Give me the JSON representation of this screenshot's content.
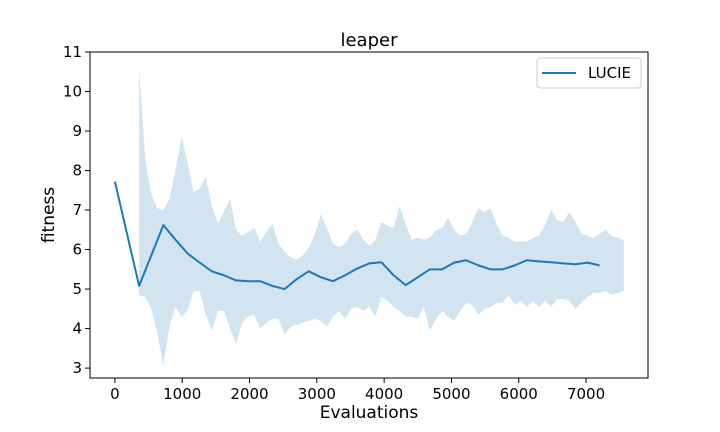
{
  "chart_data": {
    "type": "line",
    "title": "leaper",
    "xlabel": "Evaluations",
    "ylabel": "fitness",
    "xlim": [
      -370,
      7920
    ],
    "ylim": [
      2.75,
      11.0
    ],
    "xticks": [
      0,
      1000,
      2000,
      3000,
      4000,
      5000,
      6000,
      7000
    ],
    "yticks": [
      3,
      4,
      5,
      6,
      7,
      8,
      9,
      10,
      11
    ],
    "grid": false,
    "legend": {
      "position": "top-right"
    },
    "series": [
      {
        "name": "LUCIE",
        "color": "#1f77b4",
        "x": [
          0,
          360,
          720,
          900,
          1080,
          1260,
          1440,
          1620,
          1800,
          1980,
          2160,
          2340,
          2520,
          2700,
          2880,
          3060,
          3240,
          3420,
          3600,
          3780,
          3960,
          4140,
          4320,
          4500,
          4680,
          4860,
          5040,
          5220,
          5400,
          5580,
          5760,
          5940,
          6120,
          6300,
          6480,
          6660,
          6840,
          7020,
          7200
        ],
        "y": [
          7.72,
          5.08,
          6.62,
          6.25,
          5.9,
          5.67,
          5.45,
          5.35,
          5.22,
          5.2,
          5.2,
          5.08,
          5.0,
          5.25,
          5.45,
          5.3,
          5.2,
          5.35,
          5.52,
          5.65,
          5.68,
          5.35,
          5.1,
          5.3,
          5.5,
          5.5,
          5.67,
          5.73,
          5.6,
          5.5,
          5.5,
          5.6,
          5.73,
          5.7,
          5.68,
          5.65,
          5.63,
          5.67,
          5.6
        ]
      }
    ],
    "band": {
      "series": "LUCIE",
      "color": "#1f77b4",
      "opacity": 0.2,
      "x": [
        360,
        450,
        540,
        630,
        720,
        810,
        900,
        990,
        1080,
        1170,
        1260,
        1350,
        1440,
        1530,
        1620,
        1710,
        1800,
        1890,
        1980,
        2070,
        2160,
        2250,
        2340,
        2430,
        2520,
        2610,
        2700,
        2790,
        2880,
        2970,
        3060,
        3150,
        3240,
        3330,
        3420,
        3510,
        3600,
        3690,
        3780,
        3870,
        3960,
        4050,
        4140,
        4230,
        4320,
        4410,
        4500,
        4590,
        4680,
        4770,
        4860,
        4950,
        5040,
        5130,
        5220,
        5310,
        5400,
        5490,
        5580,
        5670,
        5760,
        5850,
        5940,
        6030,
        6120,
        6210,
        6300,
        6390,
        6480,
        6570,
        6660,
        6750,
        6840,
        6930,
        7020,
        7110,
        7200,
        7290,
        7380,
        7470,
        7560
      ],
      "upper": [
        10.6,
        8.3,
        7.4,
        7.05,
        7.0,
        7.3,
        8.0,
        8.85,
        8.2,
        7.45,
        7.55,
        7.85,
        7.1,
        6.65,
        6.95,
        7.3,
        6.5,
        6.35,
        6.45,
        6.55,
        6.2,
        6.45,
        6.65,
        6.15,
        5.95,
        5.8,
        5.75,
        5.85,
        6.05,
        6.4,
        6.9,
        6.55,
        6.15,
        6.05,
        6.15,
        6.4,
        6.5,
        6.25,
        6.1,
        6.25,
        6.7,
        6.6,
        6.55,
        7.1,
        6.65,
        6.25,
        6.3,
        6.25,
        6.3,
        6.5,
        6.55,
        6.8,
        6.5,
        6.35,
        6.4,
        6.7,
        7.05,
        6.95,
        7.05,
        6.65,
        6.35,
        6.3,
        6.2,
        6.2,
        6.2,
        6.3,
        6.35,
        6.6,
        7.0,
        6.75,
        6.7,
        6.95,
        6.7,
        6.4,
        6.35,
        6.3,
        6.4,
        6.5,
        6.35,
        6.3,
        6.25
      ],
      "lower": [
        4.85,
        4.8,
        4.5,
        3.9,
        3.05,
        4.05,
        4.55,
        4.3,
        4.45,
        4.95,
        4.95,
        4.35,
        3.95,
        4.45,
        4.45,
        4.0,
        3.6,
        4.15,
        4.3,
        4.35,
        4.0,
        4.15,
        4.25,
        4.25,
        3.85,
        4.05,
        4.1,
        4.15,
        4.2,
        4.25,
        4.2,
        4.05,
        4.3,
        4.45,
        4.25,
        4.5,
        4.55,
        4.45,
        4.55,
        4.3,
        4.8,
        4.7,
        4.55,
        4.45,
        4.3,
        4.3,
        4.25,
        4.55,
        3.95,
        4.25,
        4.45,
        4.3,
        4.2,
        4.45,
        4.65,
        4.6,
        4.35,
        4.5,
        4.55,
        4.65,
        4.65,
        4.85,
        4.6,
        4.7,
        4.55,
        4.7,
        4.55,
        4.7,
        4.55,
        4.75,
        4.75,
        4.7,
        4.5,
        4.65,
        4.8,
        4.9,
        4.9,
        4.95,
        4.85,
        4.9,
        4.95
      ]
    }
  }
}
